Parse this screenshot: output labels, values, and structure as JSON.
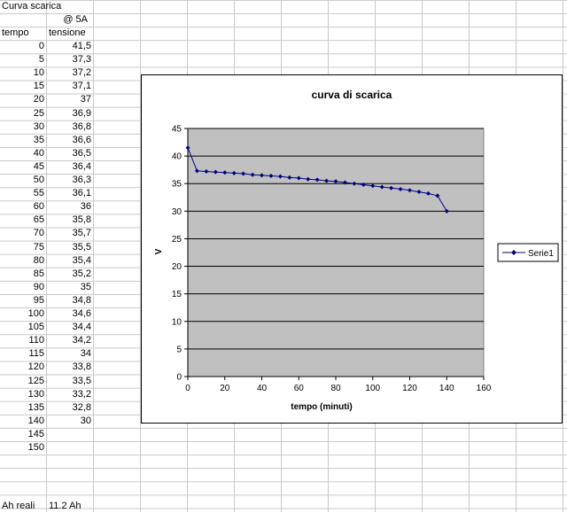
{
  "sheet": {
    "title": "Curva scarica",
    "current_label": "@  5A",
    "col_time_header": "tempo",
    "col_voltage_header": "tensione",
    "rows": [
      {
        "t": "0",
        "v": "41,5"
      },
      {
        "t": "5",
        "v": "37,3"
      },
      {
        "t": "10",
        "v": "37,2"
      },
      {
        "t": "15",
        "v": "37,1"
      },
      {
        "t": "20",
        "v": "37"
      },
      {
        "t": "25",
        "v": "36,9"
      },
      {
        "t": "30",
        "v": "36,8"
      },
      {
        "t": "35",
        "v": "36,6"
      },
      {
        "t": "40",
        "v": "36,5"
      },
      {
        "t": "45",
        "v": "36,4"
      },
      {
        "t": "50",
        "v": "36,3"
      },
      {
        "t": "55",
        "v": "36,1"
      },
      {
        "t": "60",
        "v": "36"
      },
      {
        "t": "65",
        "v": "35,8"
      },
      {
        "t": "70",
        "v": "35,7"
      },
      {
        "t": "75",
        "v": "35,5"
      },
      {
        "t": "80",
        "v": "35,4"
      },
      {
        "t": "85",
        "v": "35,2"
      },
      {
        "t": "90",
        "v": "35"
      },
      {
        "t": "95",
        "v": "34,8"
      },
      {
        "t": "100",
        "v": "34,6"
      },
      {
        "t": "105",
        "v": "34,4"
      },
      {
        "t": "110",
        "v": "34,2"
      },
      {
        "t": "115",
        "v": "34"
      },
      {
        "t": "120",
        "v": "33,8"
      },
      {
        "t": "125",
        "v": "33,5"
      },
      {
        "t": "130",
        "v": "33,2"
      },
      {
        "t": "135",
        "v": "32,8"
      },
      {
        "t": "140",
        "v": "30"
      },
      {
        "t": "145",
        "v": ""
      },
      {
        "t": "150",
        "v": ""
      }
    ],
    "footer_label": "Ah reali",
    "footer_value": "11.2 Ah"
  },
  "chart_data": {
    "type": "line",
    "title": "curva di scarica",
    "xlabel": "tempo (minuti)",
    "ylabel": "V",
    "xlim": [
      0,
      160
    ],
    "ylim": [
      0,
      45
    ],
    "xticks": [
      0,
      20,
      40,
      60,
      80,
      100,
      120,
      140,
      160
    ],
    "yticks": [
      0,
      5,
      10,
      15,
      20,
      25,
      30,
      35,
      40,
      45
    ],
    "grid": "horizontal",
    "legend_position": "right",
    "plot_background": "#c0c0c0",
    "series": [
      {
        "name": "Serie1",
        "color": "#000080",
        "x": [
          0,
          5,
          10,
          15,
          20,
          25,
          30,
          35,
          40,
          45,
          50,
          55,
          60,
          65,
          70,
          75,
          80,
          85,
          90,
          95,
          100,
          105,
          110,
          115,
          120,
          125,
          130,
          135,
          140
        ],
        "values": [
          41.5,
          37.3,
          37.2,
          37.1,
          37,
          36.9,
          36.8,
          36.6,
          36.5,
          36.4,
          36.3,
          36.1,
          36,
          35.8,
          35.7,
          35.5,
          35.4,
          35.2,
          35,
          34.8,
          34.6,
          34.4,
          34.2,
          34,
          33.8,
          33.5,
          33.2,
          32.8,
          30
        ]
      }
    ]
  }
}
